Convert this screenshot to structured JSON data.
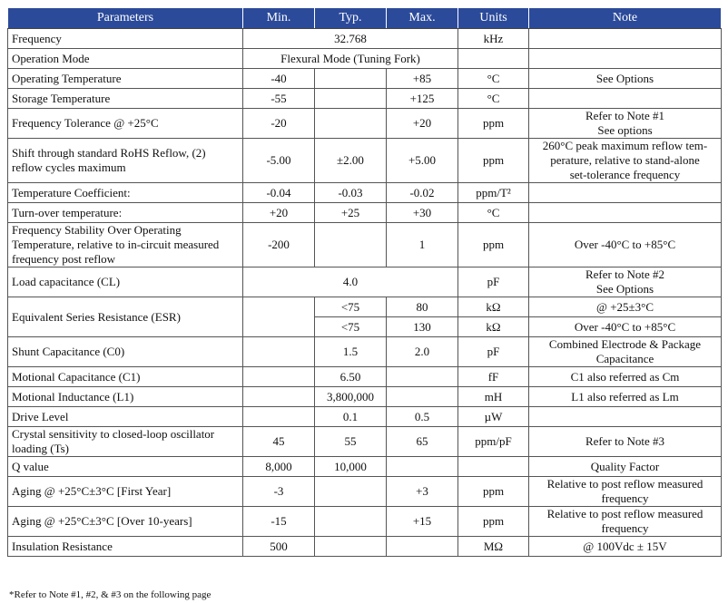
{
  "headers": [
    "Parameters",
    "Min.",
    "Typ.",
    "Max.",
    "Units",
    "Note"
  ],
  "rows": {
    "frequency": {
      "param": "Frequency",
      "typ": "32.768",
      "units": "kHz"
    },
    "operation_mode": {
      "param": "Operation Mode",
      "typ": "Flexural Mode (Tuning Fork)"
    },
    "operating_temp": {
      "param": "Operating Temperature",
      "min": "-40",
      "max": "+85",
      "units": "°C",
      "note": "See Options"
    },
    "storage_temp": {
      "param": "Storage Temperature",
      "min": "-55",
      "max": "+125",
      "units": "°C"
    },
    "freq_tolerance": {
      "param": "Frequency Tolerance @ +25°C",
      "min": "-20",
      "max": "+20",
      "units": "ppm",
      "note_line1": "Refer to Note #1",
      "note_line2": "See options"
    },
    "shift_reflow": {
      "param_line1": "Shift through standard RoHS Reflow, (2)",
      "param_line2": "reflow cycles maximum",
      "min": "-5.00",
      "typ": "±2.00",
      "max": "+5.00",
      "units": "ppm",
      "note_line1": "260°C peak maximum reflow tem-",
      "note_line2": "perature, relative to stand-alone",
      "note_line3": "set-tolerance frequency"
    },
    "temp_coeff": {
      "param": "Temperature Coefficient:",
      "min": "-0.04",
      "typ": "-0.03",
      "max": "-0.02",
      "units": "ppm/T²"
    },
    "turnover_temp": {
      "param": "Turn-over temperature:",
      "min": "+20",
      "typ": "+25",
      "max": "+30",
      "units": "°C"
    },
    "freq_stability": {
      "param_line1": "Frequency Stability Over Operating",
      "param_line2": "Temperature, relative to in-circuit measured",
      "param_line3": "frequency post reflow",
      "min": "-200",
      "max": "1",
      "units": "ppm",
      "note": "Over -40°C to +85°C"
    },
    "load_cap": {
      "param": "Load capacitance (CL)",
      "typ": "4.0",
      "units": "pF",
      "note_line1": "Refer to Note #2",
      "note_line2": "See Options"
    },
    "esr": {
      "param": "Equivalent Series Resistance (ESR)",
      "typ_a": "<75",
      "max_a": "80",
      "units_a": "kΩ",
      "note_a": "@ +25±3°C",
      "typ_b": "<75",
      "max_b": "130",
      "units_b": "kΩ",
      "note_b": "Over -40°C to +85°C"
    },
    "shunt_cap": {
      "param": "Shunt Capacitance (C0)",
      "typ": "1.5",
      "max": "2.0",
      "units": "pF",
      "note_line1": "Combined Electrode & Package",
      "note_line2": "Capacitance"
    },
    "motional_cap": {
      "param": "Motional Capacitance (C1)",
      "typ": "6.50",
      "units": "fF",
      "note": "C1 also referred as Cm"
    },
    "motional_ind": {
      "param": "Motional Inductance (L1)",
      "typ": "3,800,000",
      "units": "mH",
      "note": "L1 also referred as Lm"
    },
    "drive_level": {
      "param": "Drive Level",
      "typ": "0.1",
      "max": "0.5",
      "units": "µW"
    },
    "crystal_sens": {
      "param_line1": "Crystal sensitivity to closed-loop oscillator",
      "param_line2": "loading (Ts)",
      "min": "45",
      "typ": "55",
      "max": "65",
      "units": "ppm/pF",
      "note": "Refer to Note #3"
    },
    "q_value": {
      "param": "Q value",
      "min": "8,000",
      "typ": "10,000",
      "note": "Quality Factor"
    },
    "aging_first": {
      "param": "Aging @ +25°C±3°C [First Year]",
      "min": "-3",
      "max": "+3",
      "units": "ppm",
      "note_line1": "Relative to post reflow measured",
      "note_line2": "frequency"
    },
    "aging_10": {
      "param": "Aging @ +25°C±3°C [Over 10-years]",
      "min": "-15",
      "max": "+15",
      "units": "ppm",
      "note_line1": "Relative to post reflow measured",
      "note_line2": "frequency"
    },
    "insulation": {
      "param": "Insulation Resistance",
      "min": "500",
      "units": "MΩ",
      "note": "@ 100Vdc ± 15V"
    }
  },
  "footnote": "*Refer to Note #1, #2, & #3 on the following page"
}
